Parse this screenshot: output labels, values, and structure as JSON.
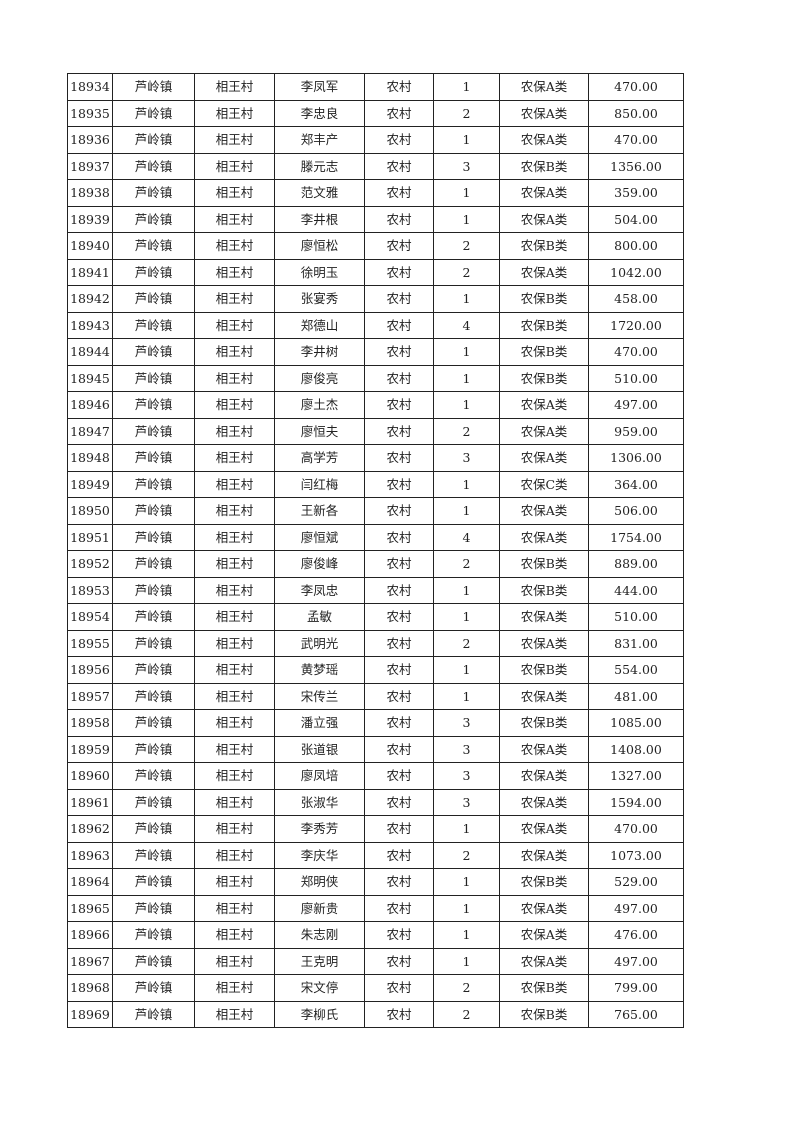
{
  "rows": [
    [
      "18934",
      "芦岭镇",
      "相王村",
      "李凤军",
      "农村",
      "1",
      "农保A类",
      "470.00"
    ],
    [
      "18935",
      "芦岭镇",
      "相王村",
      "李忠良",
      "农村",
      "2",
      "农保A类",
      "850.00"
    ],
    [
      "18936",
      "芦岭镇",
      "相王村",
      "郑丰产",
      "农村",
      "1",
      "农保A类",
      "470.00"
    ],
    [
      "18937",
      "芦岭镇",
      "相王村",
      "滕元志",
      "农村",
      "3",
      "农保B类",
      "1356.00"
    ],
    [
      "18938",
      "芦岭镇",
      "相王村",
      "范文雅",
      "农村",
      "1",
      "农保A类",
      "359.00"
    ],
    [
      "18939",
      "芦岭镇",
      "相王村",
      "李井根",
      "农村",
      "1",
      "农保A类",
      "504.00"
    ],
    [
      "18940",
      "芦岭镇",
      "相王村",
      "廖恒松",
      "农村",
      "2",
      "农保B类",
      "800.00"
    ],
    [
      "18941",
      "芦岭镇",
      "相王村",
      "徐明玉",
      "农村",
      "2",
      "农保A类",
      "1042.00"
    ],
    [
      "18942",
      "芦岭镇",
      "相王村",
      "张宴秀",
      "农村",
      "1",
      "农保B类",
      "458.00"
    ],
    [
      "18943",
      "芦岭镇",
      "相王村",
      "郑德山",
      "农村",
      "4",
      "农保B类",
      "1720.00"
    ],
    [
      "18944",
      "芦岭镇",
      "相王村",
      "李井树",
      "农村",
      "1",
      "农保B类",
      "470.00"
    ],
    [
      "18945",
      "芦岭镇",
      "相王村",
      "廖俊亮",
      "农村",
      "1",
      "农保B类",
      "510.00"
    ],
    [
      "18946",
      "芦岭镇",
      "相王村",
      "廖土杰",
      "农村",
      "1",
      "农保A类",
      "497.00"
    ],
    [
      "18947",
      "芦岭镇",
      "相王村",
      "廖恒夫",
      "农村",
      "2",
      "农保A类",
      "959.00"
    ],
    [
      "18948",
      "芦岭镇",
      "相王村",
      "高学芳",
      "农村",
      "3",
      "农保A类",
      "1306.00"
    ],
    [
      "18949",
      "芦岭镇",
      "相王村",
      "闫红梅",
      "农村",
      "1",
      "农保C类",
      "364.00"
    ],
    [
      "18950",
      "芦岭镇",
      "相王村",
      "王新各",
      "农村",
      "1",
      "农保A类",
      "506.00"
    ],
    [
      "18951",
      "芦岭镇",
      "相王村",
      "廖恒斌",
      "农村",
      "4",
      "农保A类",
      "1754.00"
    ],
    [
      "18952",
      "芦岭镇",
      "相王村",
      "廖俊峰",
      "农村",
      "2",
      "农保B类",
      "889.00"
    ],
    [
      "18953",
      "芦岭镇",
      "相王村",
      "李凤忠",
      "农村",
      "1",
      "农保B类",
      "444.00"
    ],
    [
      "18954",
      "芦岭镇",
      "相王村",
      "孟敏",
      "农村",
      "1",
      "农保A类",
      "510.00"
    ],
    [
      "18955",
      "芦岭镇",
      "相王村",
      "武明光",
      "农村",
      "2",
      "农保A类",
      "831.00"
    ],
    [
      "18956",
      "芦岭镇",
      "相王村",
      "黄梦瑶",
      "农村",
      "1",
      "农保B类",
      "554.00"
    ],
    [
      "18957",
      "芦岭镇",
      "相王村",
      "宋传兰",
      "农村",
      "1",
      "农保A类",
      "481.00"
    ],
    [
      "18958",
      "芦岭镇",
      "相王村",
      "潘立强",
      "农村",
      "3",
      "农保B类",
      "1085.00"
    ],
    [
      "18959",
      "芦岭镇",
      "相王村",
      "张道银",
      "农村",
      "3",
      "农保A类",
      "1408.00"
    ],
    [
      "18960",
      "芦岭镇",
      "相王村",
      "廖凤培",
      "农村",
      "3",
      "农保A类",
      "1327.00"
    ],
    [
      "18961",
      "芦岭镇",
      "相王村",
      "张淑华",
      "农村",
      "3",
      "农保A类",
      "1594.00"
    ],
    [
      "18962",
      "芦岭镇",
      "相王村",
      "李秀芳",
      "农村",
      "1",
      "农保A类",
      "470.00"
    ],
    [
      "18963",
      "芦岭镇",
      "相王村",
      "李庆华",
      "农村",
      "2",
      "农保A类",
      "1073.00"
    ],
    [
      "18964",
      "芦岭镇",
      "相王村",
      "郑明侠",
      "农村",
      "1",
      "农保B类",
      "529.00"
    ],
    [
      "18965",
      "芦岭镇",
      "相王村",
      "廖新贵",
      "农村",
      "1",
      "农保A类",
      "497.00"
    ],
    [
      "18966",
      "芦岭镇",
      "相王村",
      "朱志刚",
      "农村",
      "1",
      "农保A类",
      "476.00"
    ],
    [
      "18967",
      "芦岭镇",
      "相王村",
      "王克明",
      "农村",
      "1",
      "农保A类",
      "497.00"
    ],
    [
      "18968",
      "芦岭镇",
      "相王村",
      "宋文停",
      "农村",
      "2",
      "农保B类",
      "799.00"
    ],
    [
      "18969",
      "芦岭镇",
      "相王村",
      "李柳氏",
      "农村",
      "2",
      "农保B类",
      "765.00"
    ]
  ]
}
